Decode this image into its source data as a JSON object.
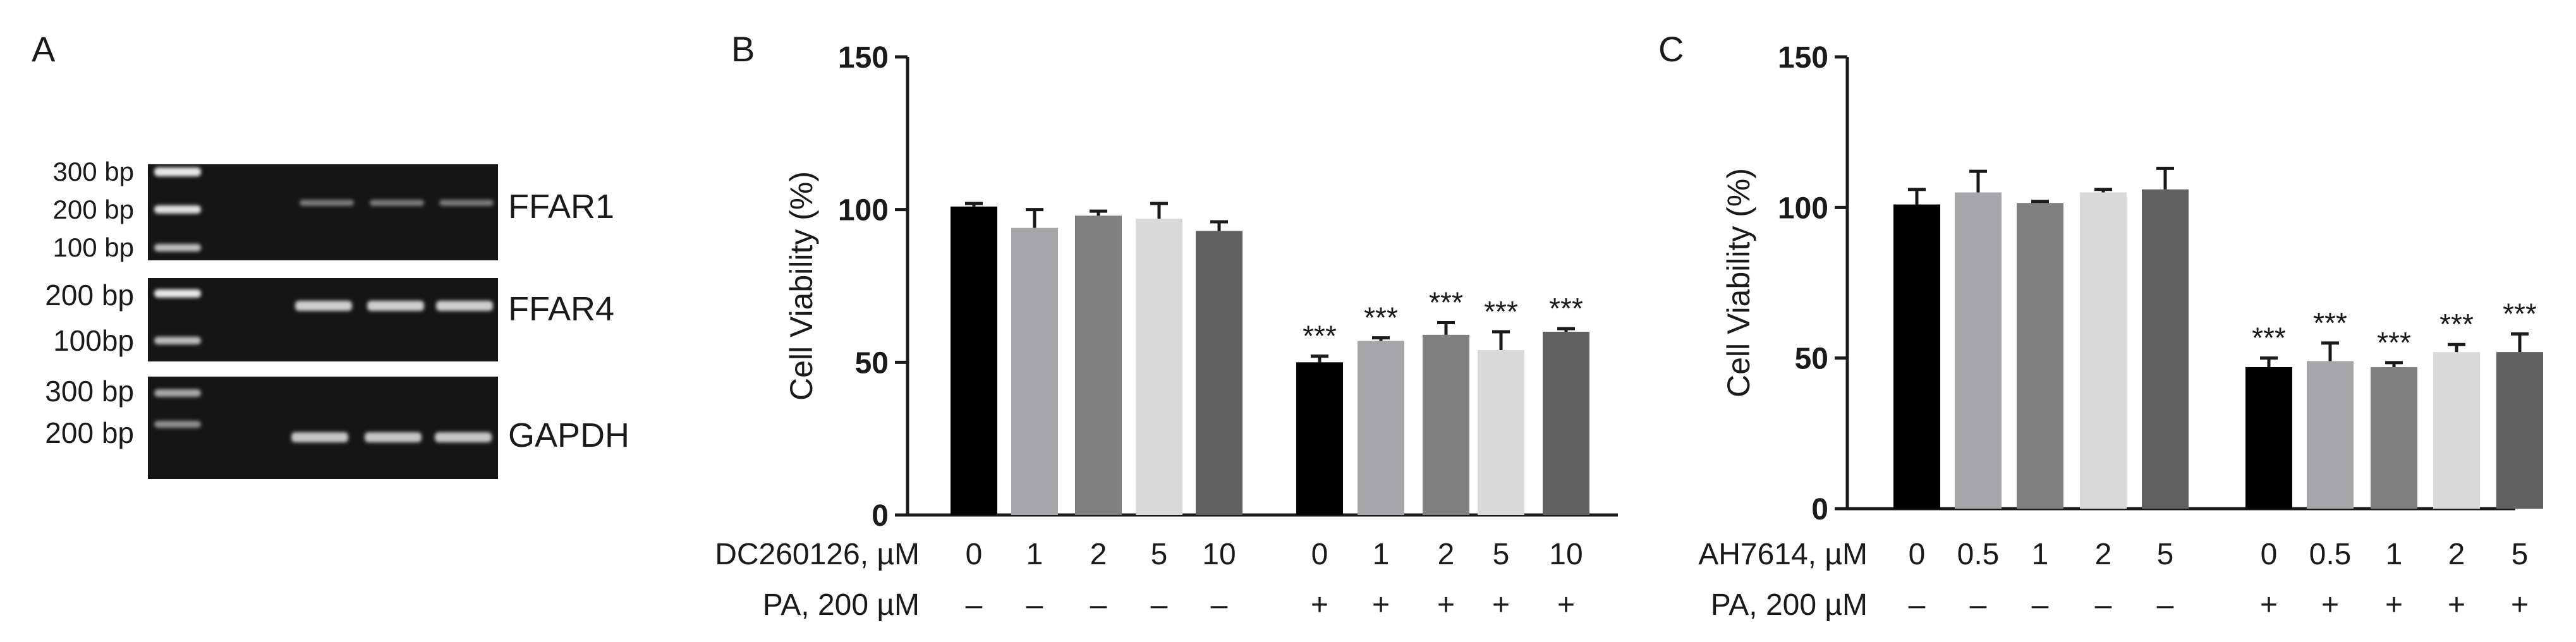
{
  "panels": {
    "a": {
      "letter": "A",
      "gels": [
        {
          "gene": "FFAR1",
          "ladder": [
            "300 bp",
            "200 bp",
            "100 bp"
          ]
        },
        {
          "gene": "FFAR4",
          "ladder": [
            "200 bp",
            "100bp"
          ]
        },
        {
          "gene": "GAPDH",
          "ladder": [
            "300 bp",
            "200 bp"
          ]
        }
      ]
    },
    "b": {
      "letter": "B"
    },
    "c": {
      "letter": "C"
    }
  },
  "chart_data": [
    {
      "type": "bar",
      "panel": "B",
      "ylabel": "Cell Viability (%)",
      "ylim": [
        0,
        150
      ],
      "yticks": [
        0,
        50,
        100,
        150
      ],
      "row1_label": "DC260126, µM",
      "row2_label": "PA, 200 µM",
      "categories": [
        "0",
        "1",
        "2",
        "5",
        "10",
        "0",
        "1",
        "2",
        "5",
        "10"
      ],
      "pa": [
        "–",
        "–",
        "–",
        "–",
        "–",
        "+",
        "+",
        "+",
        "+",
        "+"
      ],
      "values": [
        101,
        94,
        98,
        97,
        93,
        50,
        57,
        59,
        54,
        60
      ],
      "errors": [
        1,
        6,
        1.5,
        5,
        3,
        2,
        1,
        4,
        6,
        1
      ],
      "significance": [
        "",
        "",
        "",
        "",
        "",
        "***",
        "***",
        "***",
        "***",
        "***"
      ],
      "colors": [
        "#000000",
        "#a6a6a8",
        "#808080",
        "#d9d9d9",
        "#606060",
        "#000000",
        "#a6a6a8",
        "#808080",
        "#d9d9d9",
        "#606060"
      ]
    },
    {
      "type": "bar",
      "panel": "C",
      "ylabel": "Cell Viability (%)",
      "ylim": [
        0,
        150
      ],
      "yticks": [
        0,
        50,
        100,
        150
      ],
      "row1_label": "AH7614, µM",
      "row2_label": "PA, 200 µM",
      "categories": [
        "0",
        "0.5",
        "1",
        "2",
        "5",
        "0",
        "0.5",
        "1",
        "2",
        "5"
      ],
      "pa": [
        "–",
        "–",
        "–",
        "–",
        "–",
        "+",
        "+",
        "+",
        "+",
        "+"
      ],
      "values": [
        101,
        105,
        101.5,
        105,
        106,
        47,
        49,
        47,
        52,
        52
      ],
      "errors": [
        5,
        7,
        0.5,
        1,
        7,
        3,
        6,
        1.5,
        2.5,
        6
      ],
      "significance": [
        "",
        "",
        "",
        "",
        "",
        "***",
        "***",
        "***",
        "***",
        "***"
      ],
      "colors": [
        "#000000",
        "#a6a6a8",
        "#808080",
        "#d9d9d9",
        "#606060",
        "#000000",
        "#a6a6a8",
        "#808080",
        "#d9d9d9",
        "#606060"
      ]
    }
  ]
}
